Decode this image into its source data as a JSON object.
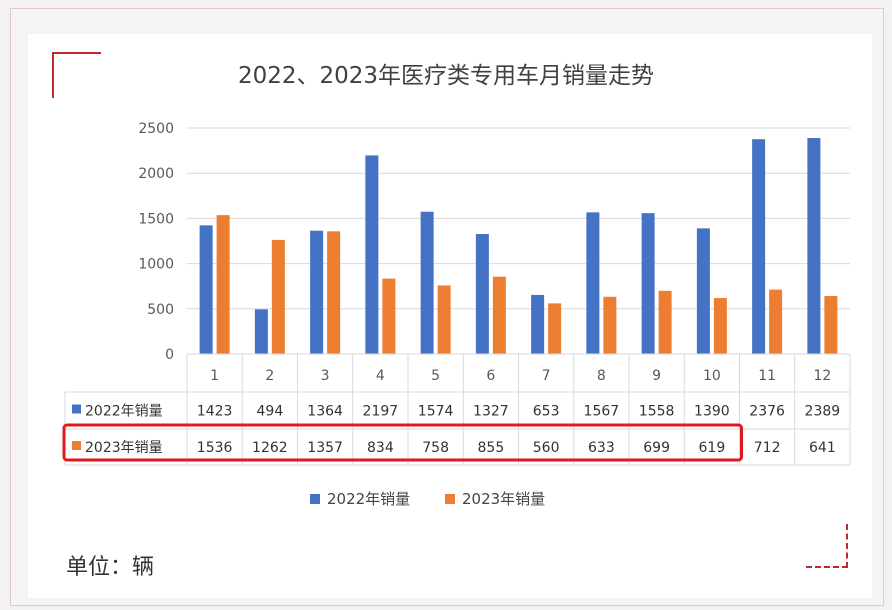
{
  "chart_data": {
    "type": "bar",
    "title": "2022、2023年医疗类专用车月销量走势",
    "categories": [
      "1",
      "2",
      "3",
      "4",
      "5",
      "6",
      "7",
      "8",
      "9",
      "10",
      "11",
      "12"
    ],
    "series": [
      {
        "name": "2022年销量",
        "color": "#4472c4",
        "values": [
          1423,
          494,
          1364,
          2197,
          1574,
          1327,
          653,
          1567,
          1558,
          1390,
          2376,
          2389
        ]
      },
      {
        "name": "2023年销量",
        "color": "#ed7d31",
        "values": [
          1536,
          1262,
          1357,
          834,
          758,
          855,
          560,
          633,
          699,
          619,
          712,
          641
        ]
      }
    ],
    "yticks": [
      "0",
      "500",
      "1000",
      "1500",
      "2000",
      "2500"
    ],
    "ylim": [
      0,
      2500
    ],
    "grid": true,
    "legend": "bottom",
    "data_table": true,
    "unit_note": "单位：辆",
    "highlight": {
      "series": "2023年销量",
      "months": "1-10",
      "color": "#e0191e"
    }
  }
}
